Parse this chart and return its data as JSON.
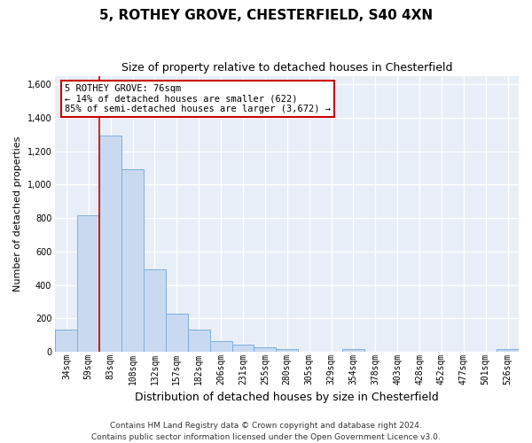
{
  "title1": "5, ROTHEY GROVE, CHESTERFIELD, S40 4XN",
  "title2": "Size of property relative to detached houses in Chesterfield",
  "xlabel": "Distribution of detached houses by size in Chesterfield",
  "ylabel": "Number of detached properties",
  "categories": [
    "34sqm",
    "59sqm",
    "83sqm",
    "108sqm",
    "132sqm",
    "157sqm",
    "182sqm",
    "206sqm",
    "231sqm",
    "255sqm",
    "280sqm",
    "305sqm",
    "329sqm",
    "354sqm",
    "378sqm",
    "403sqm",
    "428sqm",
    "452sqm",
    "477sqm",
    "501sqm",
    "526sqm"
  ],
  "values": [
    135,
    815,
    1295,
    1090,
    495,
    230,
    130,
    65,
    40,
    28,
    15,
    0,
    0,
    15,
    0,
    0,
    0,
    0,
    0,
    0,
    15
  ],
  "bar_color": "#c9daf0",
  "bar_edge_color": "#7aaedb",
  "annotation_text": "5 ROTHEY GROVE: 76sqm\n← 14% of detached houses are smaller (622)\n85% of semi-detached houses are larger (3,672) →",
  "annotation_box_facecolor": "#ffffff",
  "annotation_box_edgecolor": "#cc0000",
  "vline_x": 1.5,
  "vline_color": "#cc0000",
  "ylim": [
    0,
    1650
  ],
  "yticks": [
    0,
    200,
    400,
    600,
    800,
    1000,
    1200,
    1400,
    1600
  ],
  "footer1": "Contains HM Land Registry data © Crown copyright and database right 2024.",
  "footer2": "Contains public sector information licensed under the Open Government Licence v3.0.",
  "fig_facecolor": "#ffffff",
  "plot_facecolor": "#e8eef7",
  "grid_color": "#ffffff",
  "title1_fontsize": 11,
  "title2_fontsize": 9,
  "ylabel_fontsize": 8,
  "xlabel_fontsize": 9,
  "tick_fontsize": 7,
  "footer_fontsize": 6.5,
  "annotation_fontsize": 7.5
}
